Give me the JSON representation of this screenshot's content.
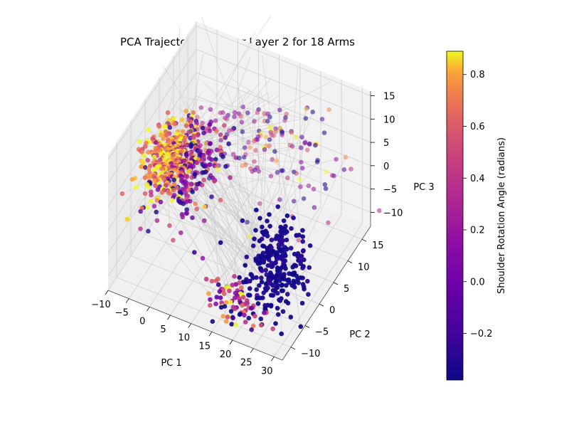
{
  "chart_data": {
    "type": "scatter",
    "title": "PCA Trajectory Decoder Layer 2 for 18 Arms",
    "xlabel": "PC 1",
    "ylabel": "PC 2",
    "zlabel": "PC 3",
    "xlim": [
      -10,
      32
    ],
    "ylim": [
      -13,
      18
    ],
    "zlim": [
      -13,
      16
    ],
    "xticks": [
      -10,
      -5,
      0,
      5,
      10,
      15,
      20,
      25,
      30
    ],
    "yticks": [
      -10,
      -5,
      0,
      5,
      10,
      15
    ],
    "zticks": [
      -10,
      -5,
      0,
      5,
      10,
      15
    ],
    "grid": true,
    "colorbar": {
      "label": "Shoulder Rotation Angle (radians)",
      "colormap": "plasma",
      "range": [
        -0.38,
        0.89
      ],
      "ticks": [
        -0.2,
        0.0,
        0.2,
        0.4,
        0.6,
        0.8
      ]
    },
    "clusters": [
      {
        "center": [
          -6,
          2,
          3
        ],
        "spread": [
          2.5,
          3,
          3
        ],
        "value": 0.75,
        "value_spread": 0.15,
        "alpha": 0.85
      },
      {
        "center": [
          -2,
          4,
          1
        ],
        "spread": [
          3,
          4,
          4
        ],
        "value": 0.1,
        "value_spread": 0.35,
        "alpha": 0.8
      },
      {
        "center": [
          24,
          -4,
          -4
        ],
        "spread": [
          3,
          3,
          4
        ],
        "value": -0.35,
        "value_spread": 0.04,
        "alpha": 0.95
      },
      {
        "center": [
          18,
          -8,
          -10
        ],
        "spread": [
          4,
          2,
          2
        ],
        "value": 0.3,
        "value_spread": 0.45,
        "alpha": 0.9
      },
      {
        "center": [
          10,
          10,
          8
        ],
        "spread": [
          10,
          5,
          6
        ],
        "value": 0.2,
        "value_spread": 0.45,
        "alpha": 0.55
      }
    ]
  }
}
